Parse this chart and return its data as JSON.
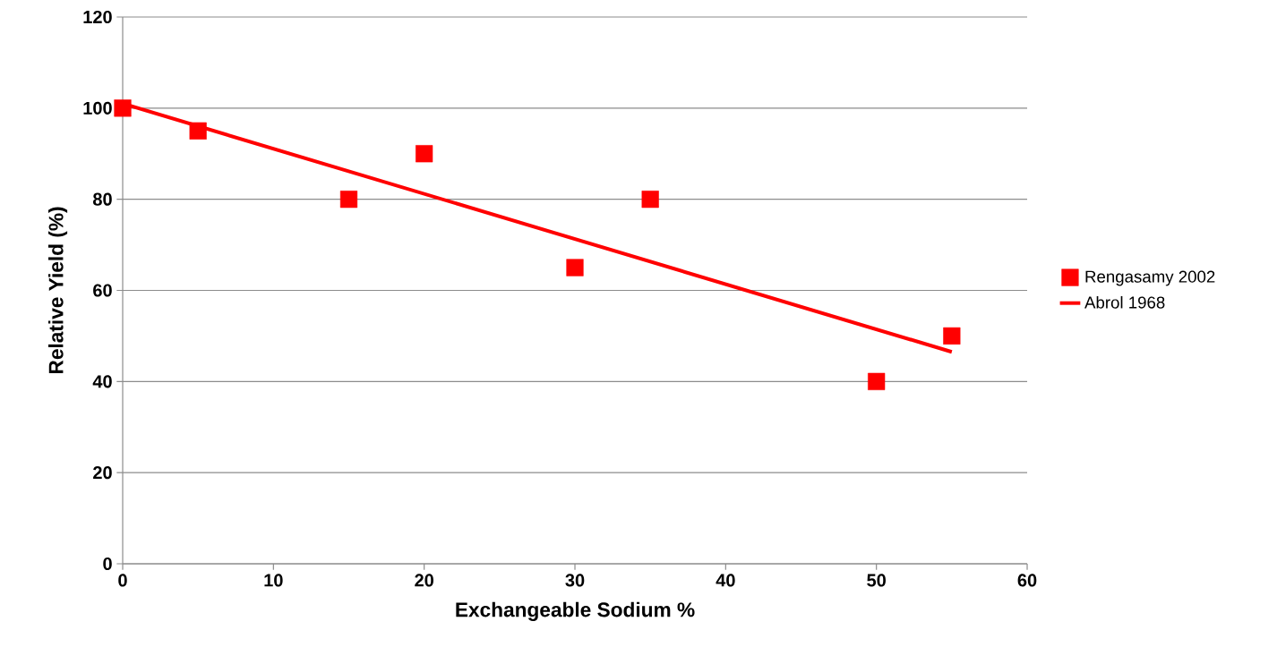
{
  "chart_data": {
    "type": "scatter",
    "xlabel": "Exchangeable Sodium %",
    "ylabel": "Relative Yield (%)",
    "xlim": [
      0,
      60
    ],
    "ylim": [
      0,
      120
    ],
    "xticks": [
      0,
      10,
      20,
      30,
      40,
      50,
      60
    ],
    "yticks": [
      0,
      20,
      40,
      60,
      80,
      100,
      120
    ],
    "grid": "y",
    "legend": "right",
    "series": [
      {
        "name": "Rengasamy 2002",
        "marker": "square",
        "color": "#ff0000",
        "x": [
          0,
          5,
          15,
          20,
          30,
          35,
          50,
          55
        ],
        "values": [
          100,
          95,
          80,
          90,
          65,
          80,
          40,
          50
        ]
      },
      {
        "name": "Abrol 1968",
        "type": "line",
        "line_style": "solid",
        "color": "#ff0000",
        "x": [
          0,
          55
        ],
        "values": [
          101,
          46.5
        ]
      }
    ]
  }
}
